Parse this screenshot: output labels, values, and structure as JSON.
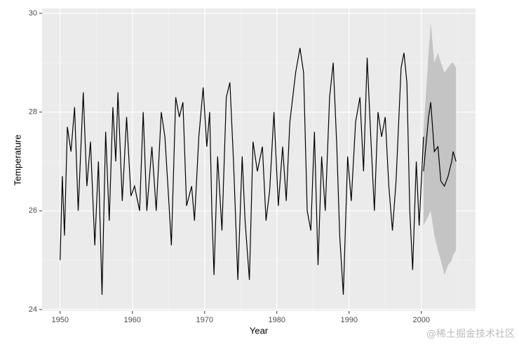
{
  "chart_data": {
    "type": "line",
    "xlabel": "Year",
    "ylabel": "Temperature",
    "watermark": "@稀土掘金技术社区",
    "x": [
      1950.0,
      1950.3,
      1950.6,
      1951.0,
      1951.5,
      1952.0,
      1952.5,
      1953.2,
      1953.7,
      1954.2,
      1954.8,
      1955.3,
      1955.8,
      1956.3,
      1956.8,
      1957.3,
      1957.7,
      1958.0,
      1958.6,
      1959.2,
      1959.8,
      1960.3,
      1961.0,
      1961.5,
      1962.0,
      1962.7,
      1963.3,
      1964.0,
      1964.5,
      1965.0,
      1965.4,
      1966.0,
      1966.5,
      1967.0,
      1967.5,
      1968.2,
      1968.6,
      1969.2,
      1969.8,
      1970.3,
      1970.7,
      1971.0,
      1971.3,
      1971.8,
      1972.4,
      1973.0,
      1973.5,
      1974.0,
      1974.6,
      1975.2,
      1975.6,
      1976.2,
      1976.7,
      1977.3,
      1978.0,
      1978.5,
      1979.0,
      1979.6,
      1980.2,
      1980.8,
      1981.3,
      1981.8,
      1982.6,
      1983.2,
      1983.7,
      1984.2,
      1984.7,
      1985.2,
      1985.7,
      1986.2,
      1986.7,
      1987.3,
      1987.8,
      1988.3,
      1988.7,
      1989.2,
      1989.8,
      1990.3,
      1990.9,
      1991.5,
      1992.0,
      1992.5,
      1993.0,
      1993.5,
      1994.0,
      1994.5,
      1995.0,
      1995.5,
      1996.0,
      1996.5,
      1997.2,
      1997.6,
      1998.0,
      1998.4,
      1998.8,
      1999.3,
      1999.7,
      2000.3
    ],
    "values": [
      25.0,
      26.7,
      25.5,
      27.7,
      27.2,
      28.1,
      26.0,
      28.4,
      26.5,
      27.4,
      25.3,
      27.0,
      24.3,
      27.6,
      25.8,
      28.1,
      27.0,
      28.4,
      26.2,
      27.9,
      26.3,
      26.5,
      26.0,
      28.0,
      26.0,
      27.3,
      26.0,
      28.0,
      27.5,
      26.3,
      25.3,
      28.3,
      27.9,
      28.2,
      26.1,
      26.5,
      25.8,
      27.5,
      28.5,
      27.3,
      28.0,
      26.0,
      24.7,
      27.1,
      25.6,
      28.3,
      28.6,
      27.0,
      24.6,
      27.1,
      25.8,
      24.6,
      27.4,
      26.8,
      27.3,
      25.8,
      26.4,
      28.0,
      26.1,
      27.3,
      26.2,
      27.8,
      28.8,
      29.3,
      28.8,
      26.0,
      25.6,
      27.6,
      24.9,
      27.1,
      26.0,
      28.3,
      29.0,
      27.3,
      25.5,
      24.3,
      27.1,
      26.2,
      27.8,
      28.3,
      26.8,
      29.1,
      27.5,
      26.0,
      28.0,
      27.5,
      27.9,
      26.5,
      25.6,
      26.6,
      28.9,
      29.2,
      28.6,
      26.0,
      24.8,
      27.0,
      25.7,
      27.5
    ],
    "color": "#000000",
    "forecast": {
      "x": [
        2000.3,
        2001.0,
        2001.3,
        2001.8,
        2002.3,
        2002.7,
        2003.2,
        2003.7,
        2004.2,
        2004.4,
        2004.8
      ],
      "values": [
        26.8,
        27.9,
        28.2,
        27.2,
        27.3,
        26.6,
        26.5,
        26.7,
        27.0,
        27.2,
        27.0
      ],
      "lower": [
        25.7,
        25.9,
        26.0,
        25.5,
        25.2,
        25.0,
        24.7,
        24.9,
        25.0,
        25.1,
        25.2
      ],
      "upper": [
        27.6,
        29.2,
        29.8,
        29.0,
        29.2,
        29.0,
        28.8,
        28.9,
        29.0,
        29.0,
        28.9
      ],
      "color": "#000000",
      "band_color": "#c4c4c4"
    },
    "xlim": [
      1947.5,
      2007.5
    ],
    "ylim": [
      23.97,
      30.1
    ],
    "xticks": [
      1950,
      1960,
      1970,
      1980,
      1990,
      2000
    ],
    "yticks": [
      24,
      26,
      28,
      30
    ],
    "x_minor_breaks": [
      1955,
      1965,
      1975,
      1985,
      1995,
      2005
    ],
    "y_minor_breaks": [
      25,
      27,
      29
    ],
    "grid": true
  }
}
